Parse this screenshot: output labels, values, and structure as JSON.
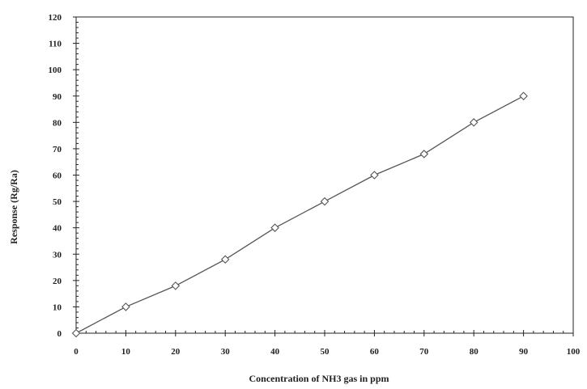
{
  "chart_data": {
    "type": "line",
    "title": "",
    "xlabel": "Concentration of  NH3 gas in ppm",
    "ylabel": "Response (Rg/Ra)",
    "x": [
      0,
      10,
      20,
      30,
      40,
      50,
      60,
      70,
      80,
      90
    ],
    "series": [
      {
        "values": [
          0,
          10,
          18,
          28,
          40,
          50,
          60,
          68,
          80,
          90
        ],
        "color": "#555555",
        "marker": "diamond"
      }
    ],
    "xlim": [
      0,
      100
    ],
    "ylim": [
      0,
      120
    ],
    "xticks": [
      "0",
      "10",
      "20",
      "30",
      "40",
      "50",
      "60",
      "70",
      "80",
      "90",
      "100"
    ],
    "yticks": [
      "0",
      "10",
      "20",
      "30",
      "40",
      "50",
      "60",
      "70",
      "80",
      "90",
      "100",
      "110",
      "120"
    ],
    "grid": false,
    "legend": "none"
  }
}
